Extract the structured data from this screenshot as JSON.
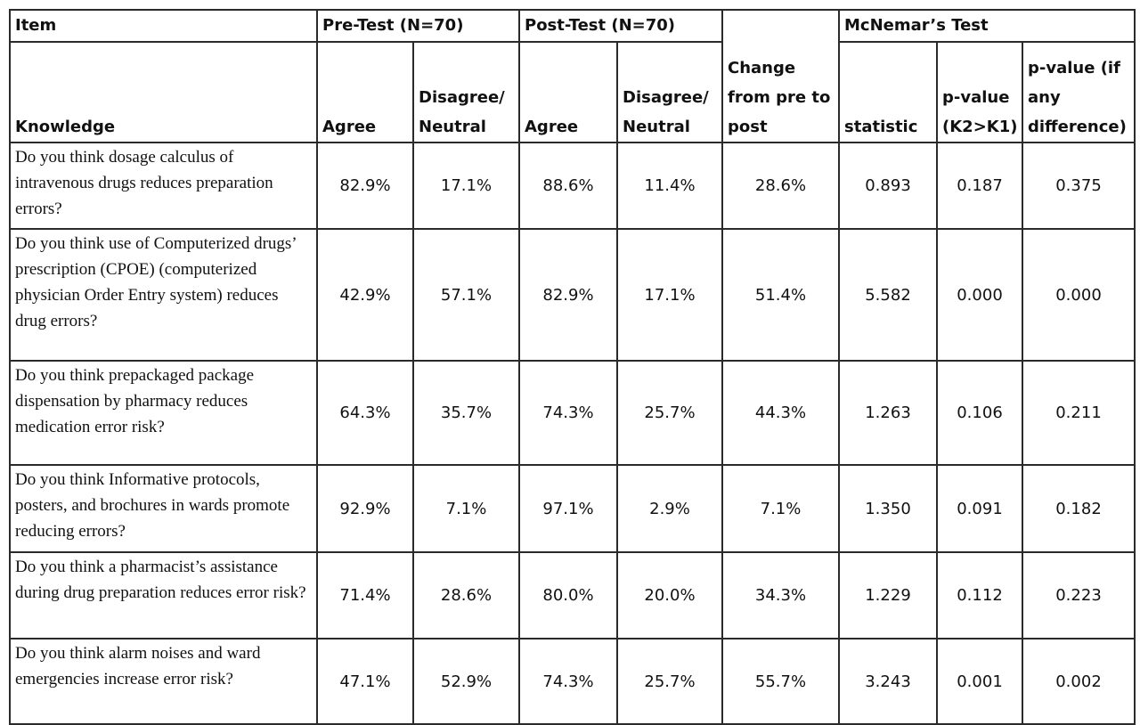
{
  "headers": {
    "item": "Item",
    "pre_test": "Pre-Test (N=70)",
    "post_test": "Post-Test (N=70)",
    "change": [
      "Change",
      "from pre to",
      "post"
    ],
    "mcnemar": "McNemar’s Test",
    "knowledge": "Knowledge",
    "pre_agree": "Agree",
    "pre_disagree": [
      "Disagree/",
      "Neutral"
    ],
    "post_agree": "Agree",
    "post_disagree": [
      "Disagree/",
      "Neutral"
    ],
    "statistic": "statistic",
    "p_one": [
      "p-value",
      "(K2>K1)"
    ],
    "p_any": [
      "p-value (if",
      "any",
      "difference)"
    ]
  },
  "rows": [
    {
      "question": "Do you think dosage calculus of intravenous drugs reduces preparation errors?",
      "pre_agree": "82.9%",
      "pre_disagree": "17.1%",
      "post_agree": "88.6%",
      "post_disagree": "11.4%",
      "change": "28.6%",
      "statistic": "0.893",
      "p_one": "0.187",
      "p_any": "0.375"
    },
    {
      "question": "Do you think use of Computerized drugs’ prescription (CPOE) (computerized physician Order Entry system) reduces drug errors?",
      "pre_agree": "42.9%",
      "pre_disagree": "57.1%",
      "post_agree": "82.9%",
      "post_disagree": "17.1%",
      "change": "51.4%",
      "statistic": "5.582",
      "p_one": "0.000",
      "p_any": "0.000"
    },
    {
      "question": "Do you think prepackaged package dispensation by pharmacy reduces medication error risk?",
      "pre_agree": "64.3%",
      "pre_disagree": "35.7%",
      "post_agree": "74.3%",
      "post_disagree": "25.7%",
      "change": "44.3%",
      "statistic": "1.263",
      "p_one": "0.106",
      "p_any": "0.211"
    },
    {
      "question": "Do you think Informative protocols, posters, and brochures in wards promote reducing errors?",
      "pre_agree": "92.9%",
      "pre_disagree": "7.1%",
      "post_agree": "97.1%",
      "post_disagree": "2.9%",
      "change": "7.1%",
      "statistic": "1.350",
      "p_one": "0.091",
      "p_any": "0.182"
    },
    {
      "question": "Do you think a pharmacist’s assistance during drug preparation reduces error risk?",
      "pre_agree": "71.4%",
      "pre_disagree": "28.6%",
      "post_agree": "80.0%",
      "post_disagree": "20.0%",
      "change": "34.3%",
      "statistic": "1.229",
      "p_one": "0.112",
      "p_any": "0.223"
    },
    {
      "question": "Do you think alarm noises and ward emergencies increase error risk?",
      "pre_agree": "47.1%",
      "pre_disagree": "52.9%",
      "post_agree": "74.3%",
      "post_disagree": "25.7%",
      "change": "55.7%",
      "statistic": "3.243",
      "p_one": "0.001",
      "p_any": "0.002"
    }
  ]
}
